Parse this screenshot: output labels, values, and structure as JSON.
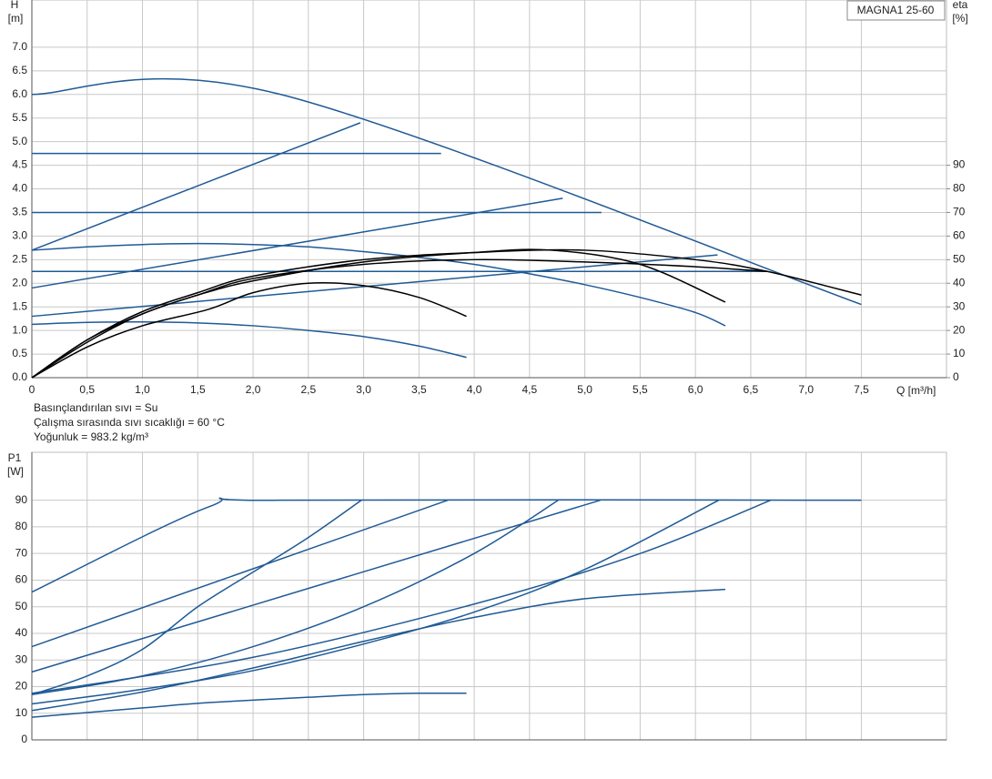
{
  "chart_data": [
    {
      "type": "line",
      "ylabel": "H",
      "yunit": "[m]",
      "y2label": "eta",
      "y2unit": "[%]",
      "xlabel": "Q [m³/h]",
      "annotation": "MAGNA1 25-60",
      "notes": [
        "Basınçlandırılan sıvı = Su",
        "Çalışma sırasında sıvı sıcaklığı = 60 °C",
        "Yoğunluk = 983.2 kg/m³"
      ],
      "grid": true,
      "xlim": [
        0,
        8.27
      ],
      "ylim": [
        0,
        8
      ],
      "y2lim": [
        0,
        160
      ],
      "xticks": [
        0,
        {
          "value": 0.5,
          "label": "0,5"
        },
        {
          "value": 1,
          "label": "1,0"
        },
        {
          "value": 1.5,
          "label": "1,5"
        },
        {
          "value": 2,
          "label": "2,0"
        },
        {
          "value": 2.5,
          "label": "2,5"
        },
        {
          "value": 3,
          "label": "3,0"
        },
        {
          "value": 3.5,
          "label": "3,5"
        },
        {
          "value": 4,
          "label": "4,0"
        },
        {
          "value": 4.5,
          "label": "4,5"
        },
        {
          "value": 5,
          "label": "5,0"
        },
        {
          "value": 5.5,
          "label": "5,5"
        },
        {
          "value": 6,
          "label": "6,0"
        },
        {
          "value": 6.5,
          "label": "6,5"
        },
        {
          "value": 7,
          "label": "7,0"
        },
        {
          "value": 7.5,
          "label": "7,5"
        }
      ],
      "yticks": [
        {
          "value": 0,
          "label": "0.0"
        },
        0.5,
        {
          "value": 1,
          "label": "1.0"
        },
        1.5,
        {
          "value": 2,
          "label": "2.0"
        },
        2.5,
        {
          "value": 3,
          "label": "3.0"
        },
        3.5,
        {
          "value": 4,
          "label": "4.0"
        },
        4.5,
        {
          "value": 5,
          "label": "5.0"
        },
        5.5,
        {
          "value": 6,
          "label": "6.0"
        },
        6.5,
        {
          "value": 7,
          "label": "7.0"
        }
      ],
      "y2ticks": [
        0,
        10,
        20,
        30,
        40,
        50,
        60,
        70,
        80,
        90
      ],
      "series": [
        {
          "color": "#1f5a96",
          "x": [
            0,
            2.25,
            7.5
          ],
          "values": [
            6,
            6,
            1.55
          ]
        },
        {
          "color": "#1f5a96",
          "x": [
            0,
            3.7
          ],
          "values": [
            4.75,
            4.75
          ]
        },
        {
          "color": "#1f5a96",
          "x": [
            0,
            5.15
          ],
          "values": [
            3.5,
            3.5
          ]
        },
        {
          "color": "#1f5a96",
          "x": [
            0,
            6.65
          ],
          "values": [
            2.25,
            2.25
          ]
        },
        {
          "color": "#1f5a96",
          "x": [
            0,
            2.97
          ],
          "values": [
            2.7,
            5.4
          ]
        },
        {
          "color": "#1f5a96",
          "x": [
            0,
            4.8
          ],
          "values": [
            1.9,
            3.8
          ]
        },
        {
          "color": "#1f5a96",
          "x": [
            0,
            6.2
          ],
          "values": [
            1.3,
            2.6
          ]
        },
        {
          "color": "#1f5a96",
          "x": [
            0,
            0.5,
            1,
            1.5,
            2,
            2.5,
            3,
            3.5,
            4,
            4.5,
            5,
            5.5,
            6,
            6.27
          ],
          "values": [
            2.7,
            2.77,
            2.82,
            2.84,
            2.82,
            2.77,
            2.67,
            2.55,
            2.4,
            2.2,
            1.97,
            1.7,
            1.38,
            1.1
          ]
        },
        {
          "color": "#1f5a96",
          "x": [
            0,
            0.5,
            1,
            1.5,
            2,
            2.5,
            3,
            3.5,
            3.93
          ],
          "values": [
            1.13,
            1.17,
            1.18,
            1.16,
            1.1,
            1.0,
            0.87,
            0.67,
            0.43
          ]
        },
        {
          "color": "#000000",
          "axis": "y2",
          "x": [
            0,
            0.5,
            1,
            1.6,
            2,
            2.5,
            3,
            3.5,
            3.93
          ],
          "values": [
            0,
            13,
            22,
            29,
            36,
            40,
            39,
            34,
            26
          ]
        },
        {
          "color": "#000000",
          "axis": "y2",
          "x": [
            0,
            0.5,
            1,
            1.5,
            2,
            3,
            4,
            4.7,
            5.5,
            6.27
          ],
          "values": [
            0,
            16,
            27,
            35,
            41,
            49,
            53,
            54,
            48,
            32
          ]
        },
        {
          "color": "#000000",
          "axis": "y2",
          "x": [
            0,
            0.5,
            1,
            1.5,
            2,
            3,
            4,
            5,
            6,
            6.65,
            7.5
          ],
          "values": [
            0,
            16,
            28,
            36,
            43,
            50,
            53,
            54,
            50,
            45,
            35
          ]
        },
        {
          "color": "#000000",
          "axis": "y2",
          "x": [
            0,
            0.5,
            1,
            1.5,
            2,
            3,
            4,
            5,
            6,
            6.65
          ],
          "values": [
            0,
            15,
            27,
            35,
            42,
            48,
            50,
            49,
            47,
            45
          ]
        }
      ]
    },
    {
      "type": "line",
      "ylabel": "P1",
      "yunit": "[W]",
      "grid": true,
      "ylim": [
        0,
        108
      ],
      "yticks": [
        0,
        10,
        20,
        30,
        40,
        50,
        60,
        70,
        80,
        90
      ],
      "series": [
        {
          "color": "#1f5a96",
          "x": [
            0,
            1.6,
            2.25,
            7.5
          ],
          "values": [
            55.5,
            87.5,
            90,
            90
          ]
        },
        {
          "color": "#1f5a96",
          "x": [
            0,
            3.76
          ],
          "values": [
            35,
            90
          ]
        },
        {
          "color": "#1f5a96",
          "x": [
            0,
            5.14
          ],
          "values": [
            25.5,
            90
          ]
        },
        {
          "color": "#1f5a96",
          "x": [
            0,
            0.5,
            1,
            1.5,
            2,
            2.5,
            2.98
          ],
          "values": [
            17,
            24,
            34,
            50,
            63,
            76,
            90
          ]
        },
        {
          "color": "#1f5a96",
          "x": [
            0,
            2,
            4,
            5.5,
            6.68
          ],
          "values": [
            17.5,
            31,
            51,
            70,
            90
          ]
        },
        {
          "color": "#1f5a96",
          "x": [
            0,
            1,
            2,
            3,
            4,
            4.76
          ],
          "values": [
            17,
            24,
            35,
            50,
            70,
            90
          ]
        },
        {
          "color": "#1f5a96",
          "x": [
            0,
            1,
            2,
            3,
            4,
            5,
            6.21
          ],
          "values": [
            13.5,
            19,
            26,
            36,
            48,
            64,
            90
          ]
        },
        {
          "color": "#1f5a96",
          "x": [
            0,
            1,
            2,
            3,
            4,
            5,
            6.27
          ],
          "values": [
            11,
            18,
            27,
            37,
            46,
            53,
            56.5
          ]
        },
        {
          "color": "#1f5a96",
          "x": [
            0,
            1,
            1.6,
            2.5,
            3,
            3.5,
            3.93
          ],
          "values": [
            8.5,
            12,
            14,
            16,
            17,
            17.5,
            17.5
          ]
        }
      ]
    }
  ]
}
